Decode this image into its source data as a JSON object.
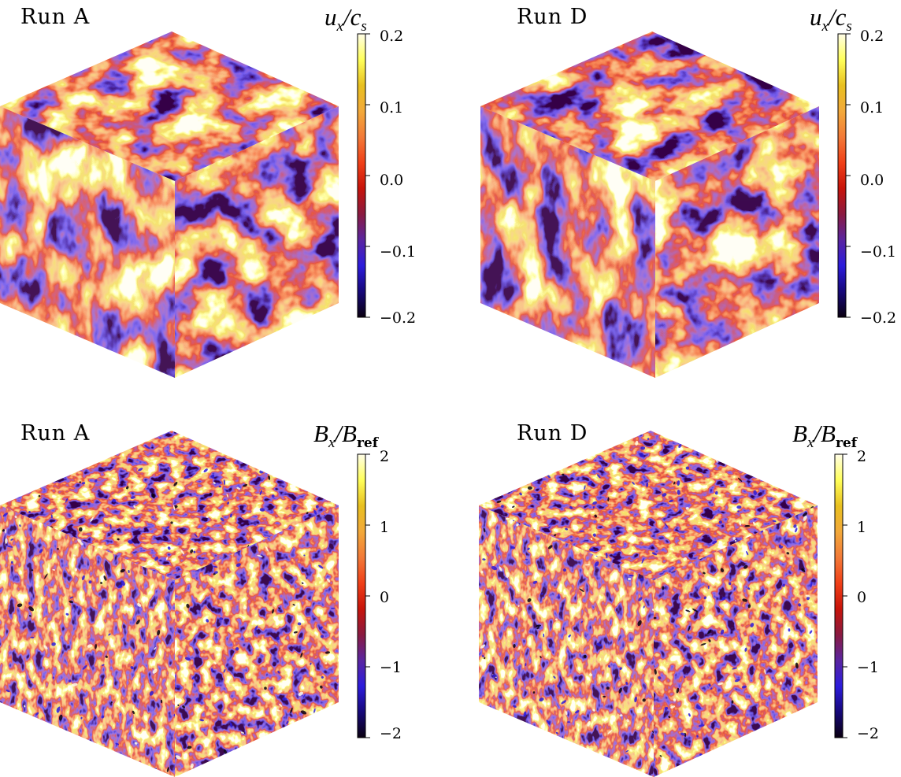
{
  "colors": {
    "colormap": [
      "#0a0010",
      "#16087a",
      "#2c1cdc",
      "#5a25a0",
      "#8a1a40",
      "#c8140a",
      "#f04018",
      "#f27a38",
      "#f2a93a",
      "#e8c020",
      "#ffff5a",
      "#fffde8"
    ]
  },
  "panels": [
    {
      "run_label": "Run A",
      "quantity": {
        "symbol": "u",
        "sub": "x",
        "slash": "/",
        "den": "c",
        "den_sub": "s",
        "den_sub_roman": false
      },
      "colorbar_ticks": [
        "0.2",
        "0.1",
        "0.0",
        "−0.1",
        "−0.2"
      ],
      "cube_style": "velocity-large-blobs"
    },
    {
      "run_label": "Run D",
      "quantity": {
        "symbol": "u",
        "sub": "x",
        "slash": "/",
        "den": "c",
        "den_sub": "s",
        "den_sub_roman": false
      },
      "colorbar_ticks": [
        "0.2",
        "0.1",
        "0.0",
        "−0.1",
        "−0.2"
      ],
      "cube_style": "velocity-large-blobs"
    },
    {
      "run_label": "Run A",
      "quantity": {
        "symbol": "B",
        "sub": "x",
        "slash": "/",
        "den": "B",
        "den_sub": "ref",
        "den_sub_roman": true
      },
      "colorbar_ticks": [
        "2",
        "1",
        "0",
        "−1",
        "−2"
      ],
      "cube_style": "field-fine-scale"
    },
    {
      "run_label": "Run D",
      "quantity": {
        "symbol": "B",
        "sub": "x",
        "slash": "/",
        "den": "B",
        "den_sub": "ref",
        "den_sub_roman": true
      },
      "colorbar_ticks": [
        "2",
        "1",
        "0",
        "−1",
        "−2"
      ],
      "cube_style": "field-fine-scale"
    }
  ]
}
